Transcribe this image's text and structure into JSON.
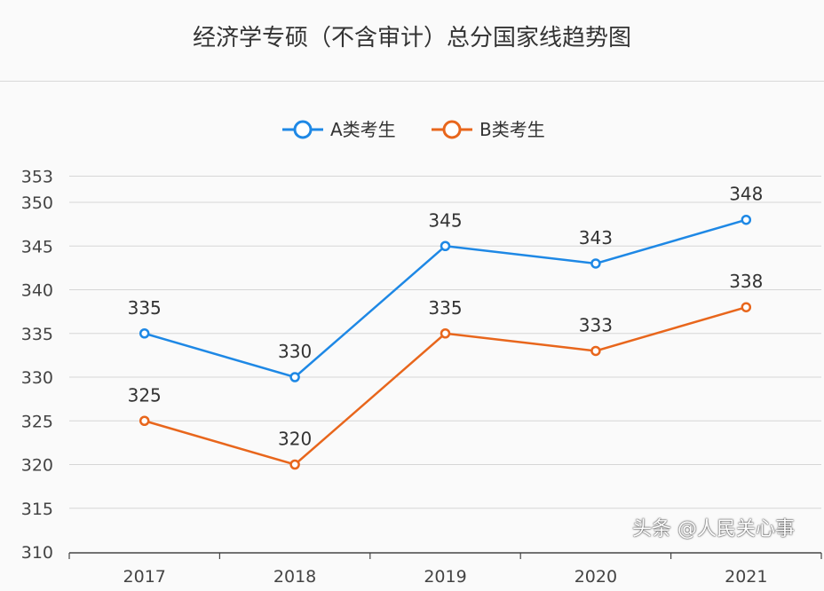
{
  "chart_data": {
    "type": "line",
    "title": "经济学专硕（不含审计）总分国家线趋势图",
    "categories": [
      "2017",
      "2018",
      "2019",
      "2020",
      "2021"
    ],
    "series": [
      {
        "name": "A类考生",
        "values": [
          335,
          330,
          345,
          343,
          348
        ],
        "color": "#1e88e5"
      },
      {
        "name": "B类考生",
        "values": [
          325,
          320,
          335,
          333,
          338
        ],
        "color": "#e8661c"
      }
    ],
    "yticks": [
      353,
      350,
      345,
      340,
      335,
      330,
      325,
      320,
      315,
      310
    ],
    "ylim": [
      310,
      353
    ],
    "grid": true,
    "legend": "top-center",
    "xlabel": "",
    "ylabel": ""
  },
  "watermark": "头条 @人民关心事"
}
